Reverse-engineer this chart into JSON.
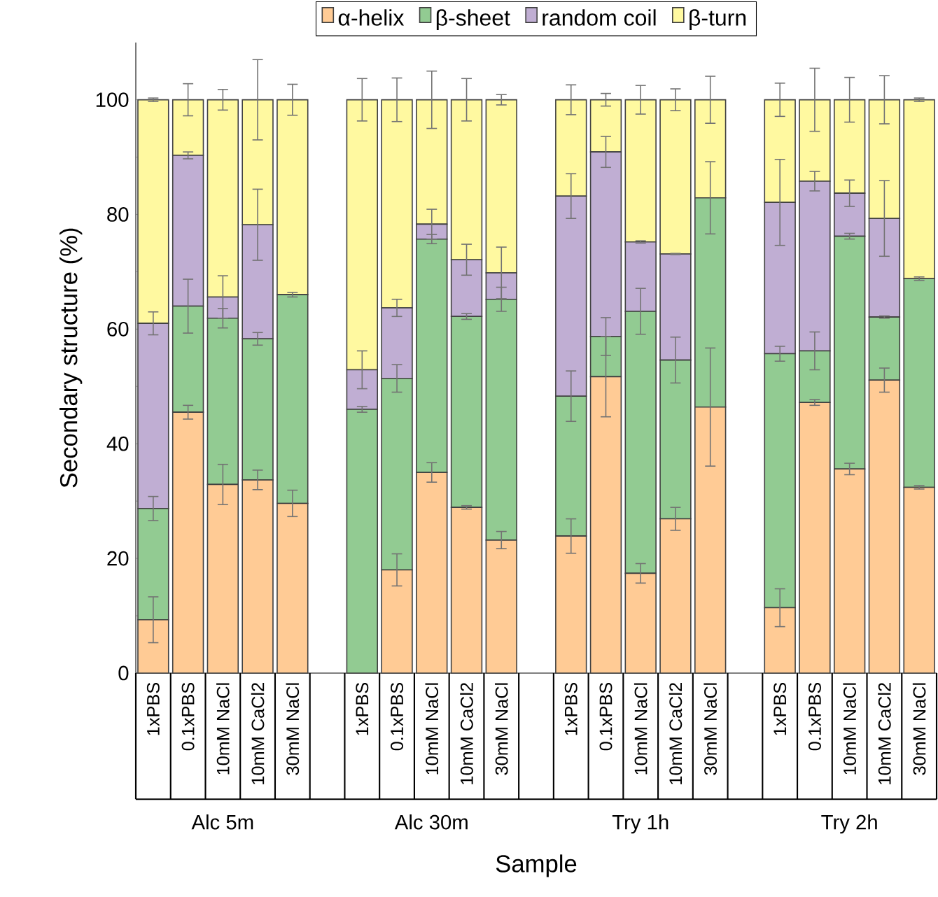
{
  "chart_data": {
    "type": "bar",
    "stacked": true,
    "legend": "top",
    "ylabel": "Secondary structure (%)",
    "xlabel": "Sample",
    "categories": [
      "1xPBS",
      "0.1xPBS",
      "10mM NaCl",
      "10mM CaCl2",
      "30mM NaCl",
      null,
      "1xPBS",
      "0.1xPBS",
      "10mM NaCl",
      "10mM CaCl2",
      "30mM NaCl",
      null,
      "1xPBS",
      "0.1xPBS",
      "10mM NaCl",
      "10mM CaCl2",
      "30mM NaCl",
      null,
      "1xPBS",
      "0.1xPBS",
      "10mM NaCl",
      "10mM CaCl2",
      "30mM NaCl"
    ],
    "annotations": [
      "Alc 5m",
      "Alc 30m",
      "Try 1h",
      "Try 2h"
    ],
    "ylim": [
      0,
      110
    ],
    "yticks": [
      0,
      20,
      40,
      60,
      80,
      100
    ],
    "series": [
      {
        "name": "α-helix",
        "color": "#ffcb95",
        "values": [
          9.3,
          45.5,
          32.9,
          33.7,
          29.6,
          null,
          0,
          18.0,
          35.0,
          28.9,
          23.2,
          null,
          23.9,
          51.7,
          17.4,
          26.9,
          46.4,
          null,
          11.4,
          47.2,
          35.6,
          51.1,
          32.4
        ],
        "errors": [
          4.0,
          1.2,
          3.5,
          1.7,
          2.3,
          null,
          null,
          2.8,
          1.7,
          0.3,
          1.5,
          null,
          3.0,
          7.0,
          1.7,
          2.0,
          10.3,
          null,
          3.3,
          0.5,
          1.0,
          2.1,
          0.3
        ]
      },
      {
        "name": "β-sheet",
        "color": "#92cb92",
        "values": [
          19.4,
          18.5,
          29.0,
          24.6,
          36.4,
          null,
          46.0,
          33.4,
          40.7,
          33.3,
          42.0,
          null,
          24.4,
          7.0,
          45.7,
          27.7,
          36.5,
          null,
          44.3,
          9.0,
          40.6,
          11.0,
          36.4
        ],
        "errors": [
          2.1,
          4.7,
          1.7,
          1.1,
          0.4,
          null,
          0.5,
          2.4,
          0.8,
          0.5,
          2.1,
          null,
          4.4,
          3.3,
          4.0,
          4.0,
          6.3,
          null,
          1.3,
          3.3,
          0.5,
          0.2,
          0.3
        ]
      },
      {
        "name": "random coil",
        "color": "#c0aed3",
        "values": [
          32.3,
          26.3,
          3.7,
          19.9,
          0,
          null,
          6.9,
          12.3,
          2.6,
          9.9,
          4.6,
          null,
          34.9,
          32.2,
          12.1,
          18.5,
          0,
          null,
          26.4,
          29.6,
          7.5,
          17.2,
          0
        ],
        "errors": [
          2.0,
          0.6,
          3.7,
          6.2,
          null,
          null,
          3.3,
          1.5,
          2.6,
          2.7,
          4.5,
          null,
          3.9,
          2.7,
          0.2,
          0.1,
          null,
          null,
          7.5,
          1.7,
          2.3,
          6.6,
          null
        ]
      },
      {
        "name": "β-turn",
        "color": "#fff9a0",
        "values": [
          39.0,
          9.7,
          34.4,
          21.8,
          34.0,
          null,
          47.1,
          36.3,
          21.7,
          27.9,
          30.2,
          null,
          16.8,
          9.1,
          24.8,
          26.9,
          17.1,
          null,
          17.9,
          14.2,
          16.3,
          20.7,
          31.2
        ],
        "errors": [
          0.3,
          2.8,
          1.8,
          7.0,
          2.7,
          null,
          3.7,
          3.8,
          5.0,
          3.7,
          0.9,
          null,
          2.6,
          1.1,
          2.5,
          1.9,
          4.1,
          null,
          2.9,
          5.5,
          3.9,
          4.2,
          0.3
        ]
      }
    ]
  }
}
